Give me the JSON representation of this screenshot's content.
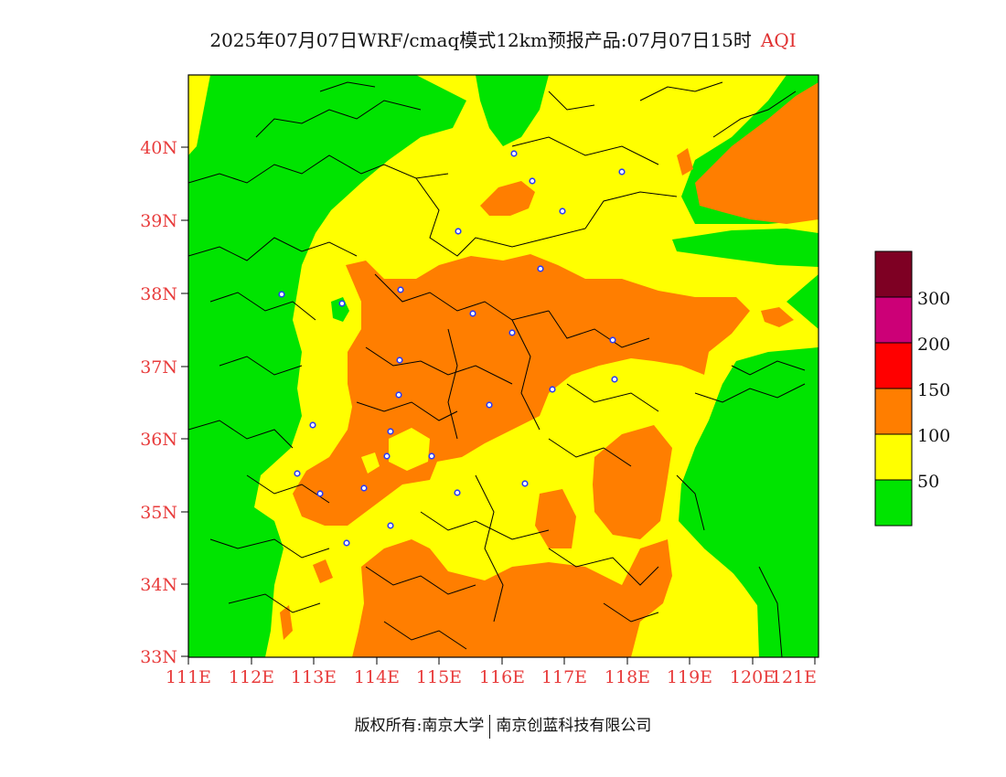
{
  "title": {
    "main": "2025年07月07日WRF/cmaq模式12km预报产品:07月07日15时",
    "product": "AQI"
  },
  "axes": {
    "latitudes": [
      "33N",
      "34N",
      "35N",
      "36N",
      "37N",
      "38N",
      "39N",
      "40N"
    ],
    "longitudes": [
      "111E",
      "112E",
      "113E",
      "114E",
      "115E",
      "116E",
      "117E",
      "118E",
      "119E",
      "120E",
      "121E"
    ]
  },
  "legend": {
    "labels": [
      "50",
      "100",
      "150",
      "200",
      "300"
    ],
    "colors": {
      "good": "#00e400",
      "moderate": "#ffff00",
      "usg": "#ff7e00",
      "unhealthy": "#ff0000",
      "very_unhealthy": "#cc0077",
      "hazardous": "#7e0023"
    }
  },
  "footer": {
    "copyright_left": "版权所有:南京大学",
    "copyright_right": "南京创蓝科技有限公司"
  }
}
